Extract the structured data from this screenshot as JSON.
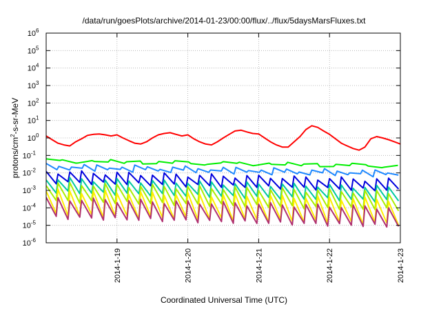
{
  "chart_data": {
    "type": "line",
    "title": "/data/run/goesPlots/archive/2014-01-23/00:00/flux/../flux/5daysMarsFluxes.txt",
    "xlabel": "Coordinated Universal Time (UTC)",
    "ylabel": {
      "base": "protons/cm",
      "sup": "2",
      "rest": "-s-sr-MeV"
    },
    "y_scale": "log",
    "ylim": [
      1e-06,
      1000000.0
    ],
    "xlim": [
      "2014-01-18T00:00",
      "2014-01-23T00:00"
    ],
    "y_ticks": [
      {
        "value": 1e-06,
        "base": "10",
        "exp": "-6"
      },
      {
        "value": 1e-05,
        "base": "10",
        "exp": "-5"
      },
      {
        "value": 0.0001,
        "base": "10",
        "exp": "-4"
      },
      {
        "value": 0.001,
        "base": "10",
        "exp": "-3"
      },
      {
        "value": 0.01,
        "base": "10",
        "exp": "-2"
      },
      {
        "value": 0.1,
        "base": "10",
        "exp": "-1"
      },
      {
        "value": 1.0,
        "base": "10",
        "exp": "0"
      },
      {
        "value": 10.0,
        "base": "10",
        "exp": "1"
      },
      {
        "value": 100.0,
        "base": "10",
        "exp": "2"
      },
      {
        "value": 1000.0,
        "base": "10",
        "exp": "3"
      },
      {
        "value": 10000.0,
        "base": "10",
        "exp": "4"
      },
      {
        "value": 100000.0,
        "base": "10",
        "exp": "5"
      },
      {
        "value": 1000000.0,
        "base": "10",
        "exp": "6"
      }
    ],
    "x_ticks": [
      "2014-1-19",
      "2014-1-20",
      "2014-1-21",
      "2014-1-22",
      "2014-1-23"
    ],
    "grid": true,
    "series": [
      {
        "color": "#ff0000",
        "x": [
          "2014-01-18T00:00",
          "2014-01-18T02:00",
          "2014-01-18T04:00",
          "2014-01-18T06:00",
          "2014-01-18T08:00",
          "2014-01-18T10:00",
          "2014-01-18T12:00",
          "2014-01-18T14:00",
          "2014-01-18T16:00",
          "2014-01-18T18:00",
          "2014-01-18T20:00",
          "2014-01-18T22:00",
          "2014-01-19T00:00",
          "2014-01-19T02:00",
          "2014-01-19T04:00",
          "2014-01-19T06:00",
          "2014-01-19T08:00",
          "2014-01-19T10:00",
          "2014-01-19T12:00",
          "2014-01-19T14:00",
          "2014-01-19T16:00",
          "2014-01-19T18:00",
          "2014-01-19T20:00",
          "2014-01-19T22:00",
          "2014-01-20T00:00",
          "2014-01-20T02:00",
          "2014-01-20T04:00",
          "2014-01-20T06:00",
          "2014-01-20T08:00",
          "2014-01-20T10:00",
          "2014-01-20T12:00",
          "2014-01-20T14:00",
          "2014-01-20T16:00",
          "2014-01-20T18:00",
          "2014-01-20T20:00",
          "2014-01-20T22:00",
          "2014-01-21T00:00",
          "2014-01-21T02:00",
          "2014-01-21T04:00",
          "2014-01-21T06:00",
          "2014-01-21T08:00",
          "2014-01-21T10:00",
          "2014-01-21T12:00",
          "2014-01-21T14:00",
          "2014-01-21T16:00",
          "2014-01-21T18:00",
          "2014-01-21T20:00",
          "2014-01-21T22:00",
          "2014-01-22T00:00",
          "2014-01-22T02:00",
          "2014-01-22T04:00",
          "2014-01-22T06:00",
          "2014-01-22T08:00",
          "2014-01-22T10:00",
          "2014-01-22T12:00",
          "2014-01-22T14:00",
          "2014-01-22T16:00",
          "2014-01-22T18:00",
          "2014-01-22T20:00",
          "2014-01-22T22:00",
          "2014-01-23T00:00"
        ],
        "values": [
          1.3,
          0.8,
          0.5,
          0.4,
          0.35,
          0.6,
          0.9,
          1.4,
          1.6,
          1.7,
          1.5,
          1.3,
          1.5,
          1.0,
          0.7,
          0.5,
          0.45,
          0.6,
          1.0,
          1.5,
          1.8,
          2.0,
          1.6,
          1.3,
          1.5,
          0.9,
          0.6,
          0.45,
          0.4,
          0.6,
          1.0,
          1.6,
          2.5,
          2.8,
          2.2,
          1.8,
          1.7,
          1.0,
          0.6,
          0.4,
          0.3,
          0.3,
          0.6,
          1.2,
          3.0,
          5.0,
          4.0,
          2.5,
          1.6,
          0.9,
          0.5,
          0.35,
          0.25,
          0.2,
          0.3,
          0.9,
          1.2,
          1.0,
          0.8,
          0.6,
          0.45
        ]
      },
      {
        "color": "#00ee00",
        "base": 0.05,
        "end": 0.025,
        "amp": 1.12,
        "dips": 22
      },
      {
        "color": "#1e88ff",
        "base": 0.022,
        "end": 0.009,
        "amp": 1.7,
        "dips": 28
      },
      {
        "color": "#0000dd",
        "base": 0.006,
        "end": 0.002,
        "amp": 4.0,
        "dips": 30
      },
      {
        "color": "#00c8a0",
        "base": 0.002,
        "end": 0.0006,
        "amp": 6.0,
        "dips": 30
      },
      {
        "color": "#aaee00",
        "base": 0.0008,
        "end": 0.00025,
        "amp": 10.0,
        "dips": 30
      },
      {
        "color": "#ffee00",
        "base": 0.0002,
        "end": 6e-05,
        "amp": 25.0,
        "dips": 30
      },
      {
        "color": "#b03070",
        "base": 0.0001,
        "end": 3e-05,
        "amp": 12.0,
        "dips": 30
      }
    ]
  }
}
